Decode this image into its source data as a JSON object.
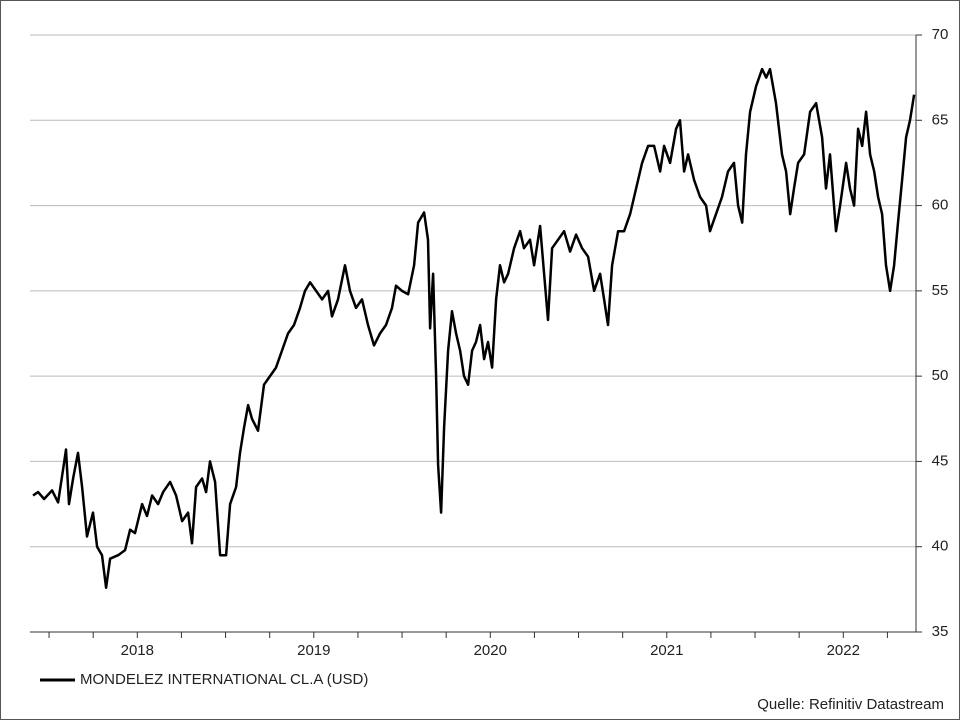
{
  "chart_data": {
    "type": "line",
    "series": [
      {
        "name": "MONDELEZ INTERNATIONAL CL.A (USD)",
        "color": "#000000",
        "x": [
          2017.909,
          2017.938,
          2017.972,
          2018.017,
          2018.051,
          2018.079,
          2018.096,
          2018.113,
          2018.136,
          2018.164,
          2018.187,
          2018.215,
          2018.249,
          2018.272,
          2018.3,
          2018.323,
          2018.346,
          2018.391,
          2018.431,
          2018.459,
          2018.487,
          2018.527,
          2018.555,
          2018.584,
          2018.618,
          2018.646,
          2018.686,
          2018.72,
          2018.754,
          2018.788,
          2018.81,
          2018.833,
          2018.867,
          2018.89,
          2018.912,
          2018.941,
          2018.969,
          2019.003,
          2019.026,
          2019.06,
          2019.082,
          2019.105,
          2019.128,
          2019.15,
          2019.184,
          2019.218,
          2019.252,
          2019.286,
          2019.32,
          2019.354,
          2019.388,
          2019.422,
          2019.45,
          2019.479,
          2019.513,
          2019.547,
          2019.581,
          2019.603,
          2019.637,
          2019.677,
          2019.705,
          2019.739,
          2019.773,
          2019.807,
          2019.841,
          2019.875,
          2019.909,
          2019.943,
          2019.966,
          2020.0,
          2020.034,
          2020.068,
          2020.091,
          2020.125,
          2020.147,
          2020.159,
          2020.176,
          2020.193,
          2020.204,
          2020.221,
          2020.238,
          2020.261,
          2020.283,
          2020.306,
          2020.329,
          2020.351,
          2020.374,
          2020.397,
          2020.419,
          2020.442,
          2020.465,
          2020.487,
          2020.51,
          2020.533,
          2020.555,
          2020.578,
          2020.601,
          2020.635,
          2020.669,
          2020.691,
          2020.725,
          2020.748,
          2020.782,
          2020.805,
          2020.827,
          2020.85,
          2020.884,
          2020.918,
          2020.952,
          2020.986,
          2021.02,
          2021.054,
          2021.088,
          2021.122,
          2021.145,
          2021.167,
          2021.19,
          2021.224,
          2021.258,
          2021.292,
          2021.326,
          2021.36,
          2021.394,
          2021.428,
          2021.462,
          2021.485,
          2021.519,
          2021.553,
          2021.575,
          2021.598,
          2021.621,
          2021.655,
          2021.689,
          2021.723,
          2021.745,
          2021.779,
          2021.813,
          2021.847,
          2021.881,
          2021.904,
          2021.927,
          2021.949,
          2021.972,
          2022.006,
          2022.04,
          2022.063,
          2022.085,
          2022.119,
          2022.153,
          2022.176,
          2022.199,
          2022.221,
          2022.244,
          2022.278,
          2022.312,
          2022.346,
          2022.38,
          2022.402,
          2022.425,
          2022.459,
          2022.482,
          2022.516,
          2022.538,
          2022.561,
          2022.584,
          2022.607,
          2022.629,
          2022.652,
          2022.675,
          2022.697,
          2022.72,
          2022.742,
          2022.765,
          2022.788,
          2022.81,
          2022.833,
          2022.856,
          2022.878,
          2022.901
        ],
        "values": [
          43.0,
          43.2,
          42.8,
          43.3,
          42.6,
          44.5,
          45.7,
          42.5,
          44.0,
          45.5,
          43.5,
          40.6,
          42.0,
          40.0,
          39.5,
          37.6,
          39.3,
          39.5,
          39.8,
          41.0,
          40.8,
          42.5,
          41.8,
          43.0,
          42.5,
          43.2,
          43.8,
          43.0,
          41.5,
          42.0,
          40.2,
          43.5,
          44.0,
          43.2,
          45.0,
          43.8,
          39.5,
          39.5,
          42.5,
          43.5,
          45.5,
          47.0,
          48.3,
          47.5,
          46.8,
          49.5,
          50.0,
          50.5,
          51.5,
          52.5,
          53.0,
          54.0,
          55.0,
          55.5,
          55.0,
          54.5,
          55.0,
          53.5,
          54.5,
          56.5,
          55.0,
          54.0,
          54.5,
          53.0,
          51.8,
          52.5,
          53.0,
          54.0,
          55.3,
          55.0,
          54.8,
          56.5,
          59.0,
          59.6,
          58.0,
          52.8,
          56.0,
          50.0,
          44.8,
          42.0,
          47.0,
          51.5,
          53.8,
          52.5,
          51.5,
          50.0,
          49.5,
          51.5,
          52.0,
          53.0,
          51.0,
          52.0,
          50.5,
          54.5,
          56.5,
          55.5,
          56.0,
          57.5,
          58.5,
          57.5,
          58.0,
          56.5,
          58.8,
          56.0,
          53.3,
          57.5,
          58.0,
          58.5,
          57.3,
          58.3,
          57.5,
          57.0,
          55.0,
          56.0,
          54.5,
          53.0,
          56.5,
          58.5,
          58.5,
          59.5,
          61.0,
          62.5,
          63.5,
          63.5,
          62.0,
          63.5,
          62.5,
          64.5,
          65.0,
          62.0,
          63.0,
          61.5,
          60.5,
          60.0,
          58.5,
          59.5,
          60.5,
          62.0,
          62.5,
          60.0,
          59.0,
          63.0,
          65.5,
          67.0,
          68.0,
          67.5,
          68.0,
          66.0,
          63.0,
          62.0,
          59.5,
          61.0,
          62.5,
          63.0,
          65.5,
          66.0,
          64.0,
          61.0,
          63.0,
          58.5,
          60.0,
          62.5,
          61.0,
          60.0,
          64.5,
          63.5,
          65.5,
          63.0,
          62.0,
          60.5,
          59.5,
          56.5,
          55.0,
          56.5,
          59.0,
          61.5,
          64.0,
          65.0,
          66.5
        ]
      }
    ],
    "xlim": [
      2017.892,
      2022.912
    ],
    "xticks": [
      {
        "value": 2018.5,
        "label": "2018"
      },
      {
        "value": 2019.5,
        "label": "2019"
      },
      {
        "value": 2020.5,
        "label": "2020"
      },
      {
        "value": 2021.5,
        "label": "2021"
      },
      {
        "value": 2022.5,
        "label": "2022"
      }
    ],
    "xminorticks": [
      2018,
      2018.25,
      2018.5,
      2018.75,
      2019,
      2019.25,
      2019.5,
      2019.75,
      2020,
      2020.25,
      2020.5,
      2020.75,
      2021,
      2021.25,
      2021.5,
      2021.75,
      2022,
      2022.25,
      2022.5,
      2022.75
    ],
    "ylim": [
      35,
      70
    ],
    "yticks": [
      35,
      40,
      45,
      50,
      55,
      60,
      65,
      70
    ],
    "y_axis_side": "right",
    "grid": true,
    "source": "Quelle: Refinitiv Datastream"
  }
}
